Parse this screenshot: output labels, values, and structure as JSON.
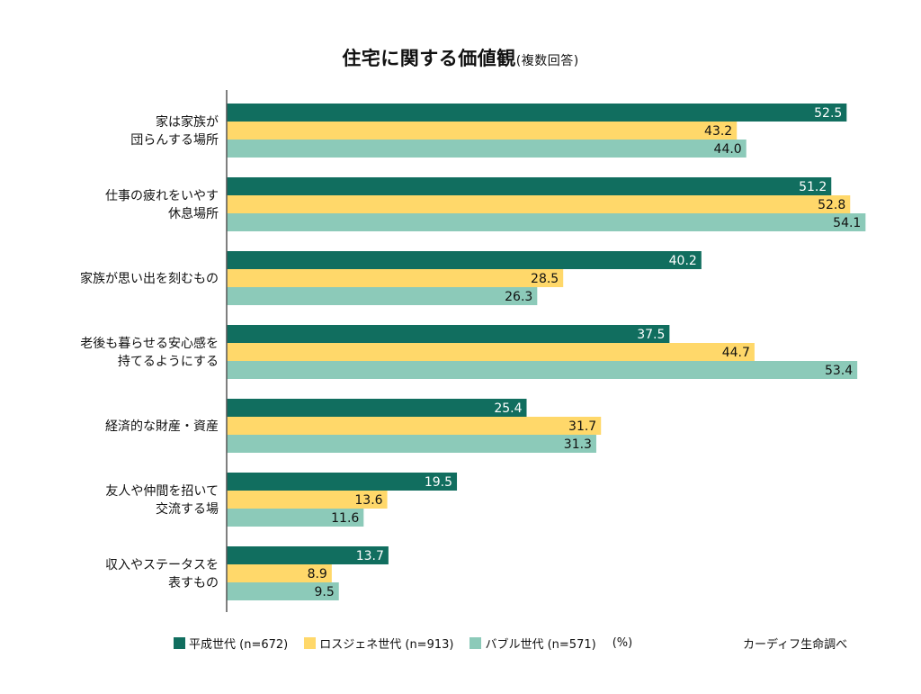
{
  "title": "住宅に関する価値観",
  "subtitle": "(複数回答)",
  "unit_label": "(%)",
  "source": "カーディフ生命調べ",
  "colors": {
    "heisei": "#116E5F",
    "lostgen": "#FFD86A",
    "bubble": "#8CCAB9",
    "axis": "#555555"
  },
  "chart_data": {
    "type": "bar",
    "orientation": "horizontal",
    "title": "住宅に関する価値観(複数回答)",
    "xlabel": "",
    "ylabel": "",
    "unit": "%",
    "xlim": [
      0,
      55
    ],
    "grid": false,
    "legend_position": "bottom",
    "categories": [
      [
        "家は家族が",
        "団らんする場所"
      ],
      [
        "仕事の疲れをいやす",
        "休息場所"
      ],
      [
        "家族が思い出を刻むもの"
      ],
      [
        "老後も暮らせる安心感を",
        "持てるようにする"
      ],
      [
        "経済的な財産・資産"
      ],
      [
        "友人や仲間を招いて",
        "交流する場"
      ],
      [
        "収入やステータスを",
        "表すもの"
      ]
    ],
    "series": [
      {
        "name": "平成世代 (n=672)",
        "key": "heisei",
        "values": [
          52.5,
          51.2,
          40.2,
          37.5,
          25.4,
          19.5,
          13.7
        ]
      },
      {
        "name": "ロスジェネ世代 (n=913)",
        "key": "lostgen",
        "values": [
          43.2,
          52.8,
          28.5,
          44.7,
          31.7,
          13.6,
          8.9
        ]
      },
      {
        "name": "バブル世代 (n=571)",
        "key": "bubble",
        "values": [
          44.0,
          54.1,
          26.3,
          53.4,
          31.3,
          11.6,
          9.5
        ]
      }
    ]
  }
}
